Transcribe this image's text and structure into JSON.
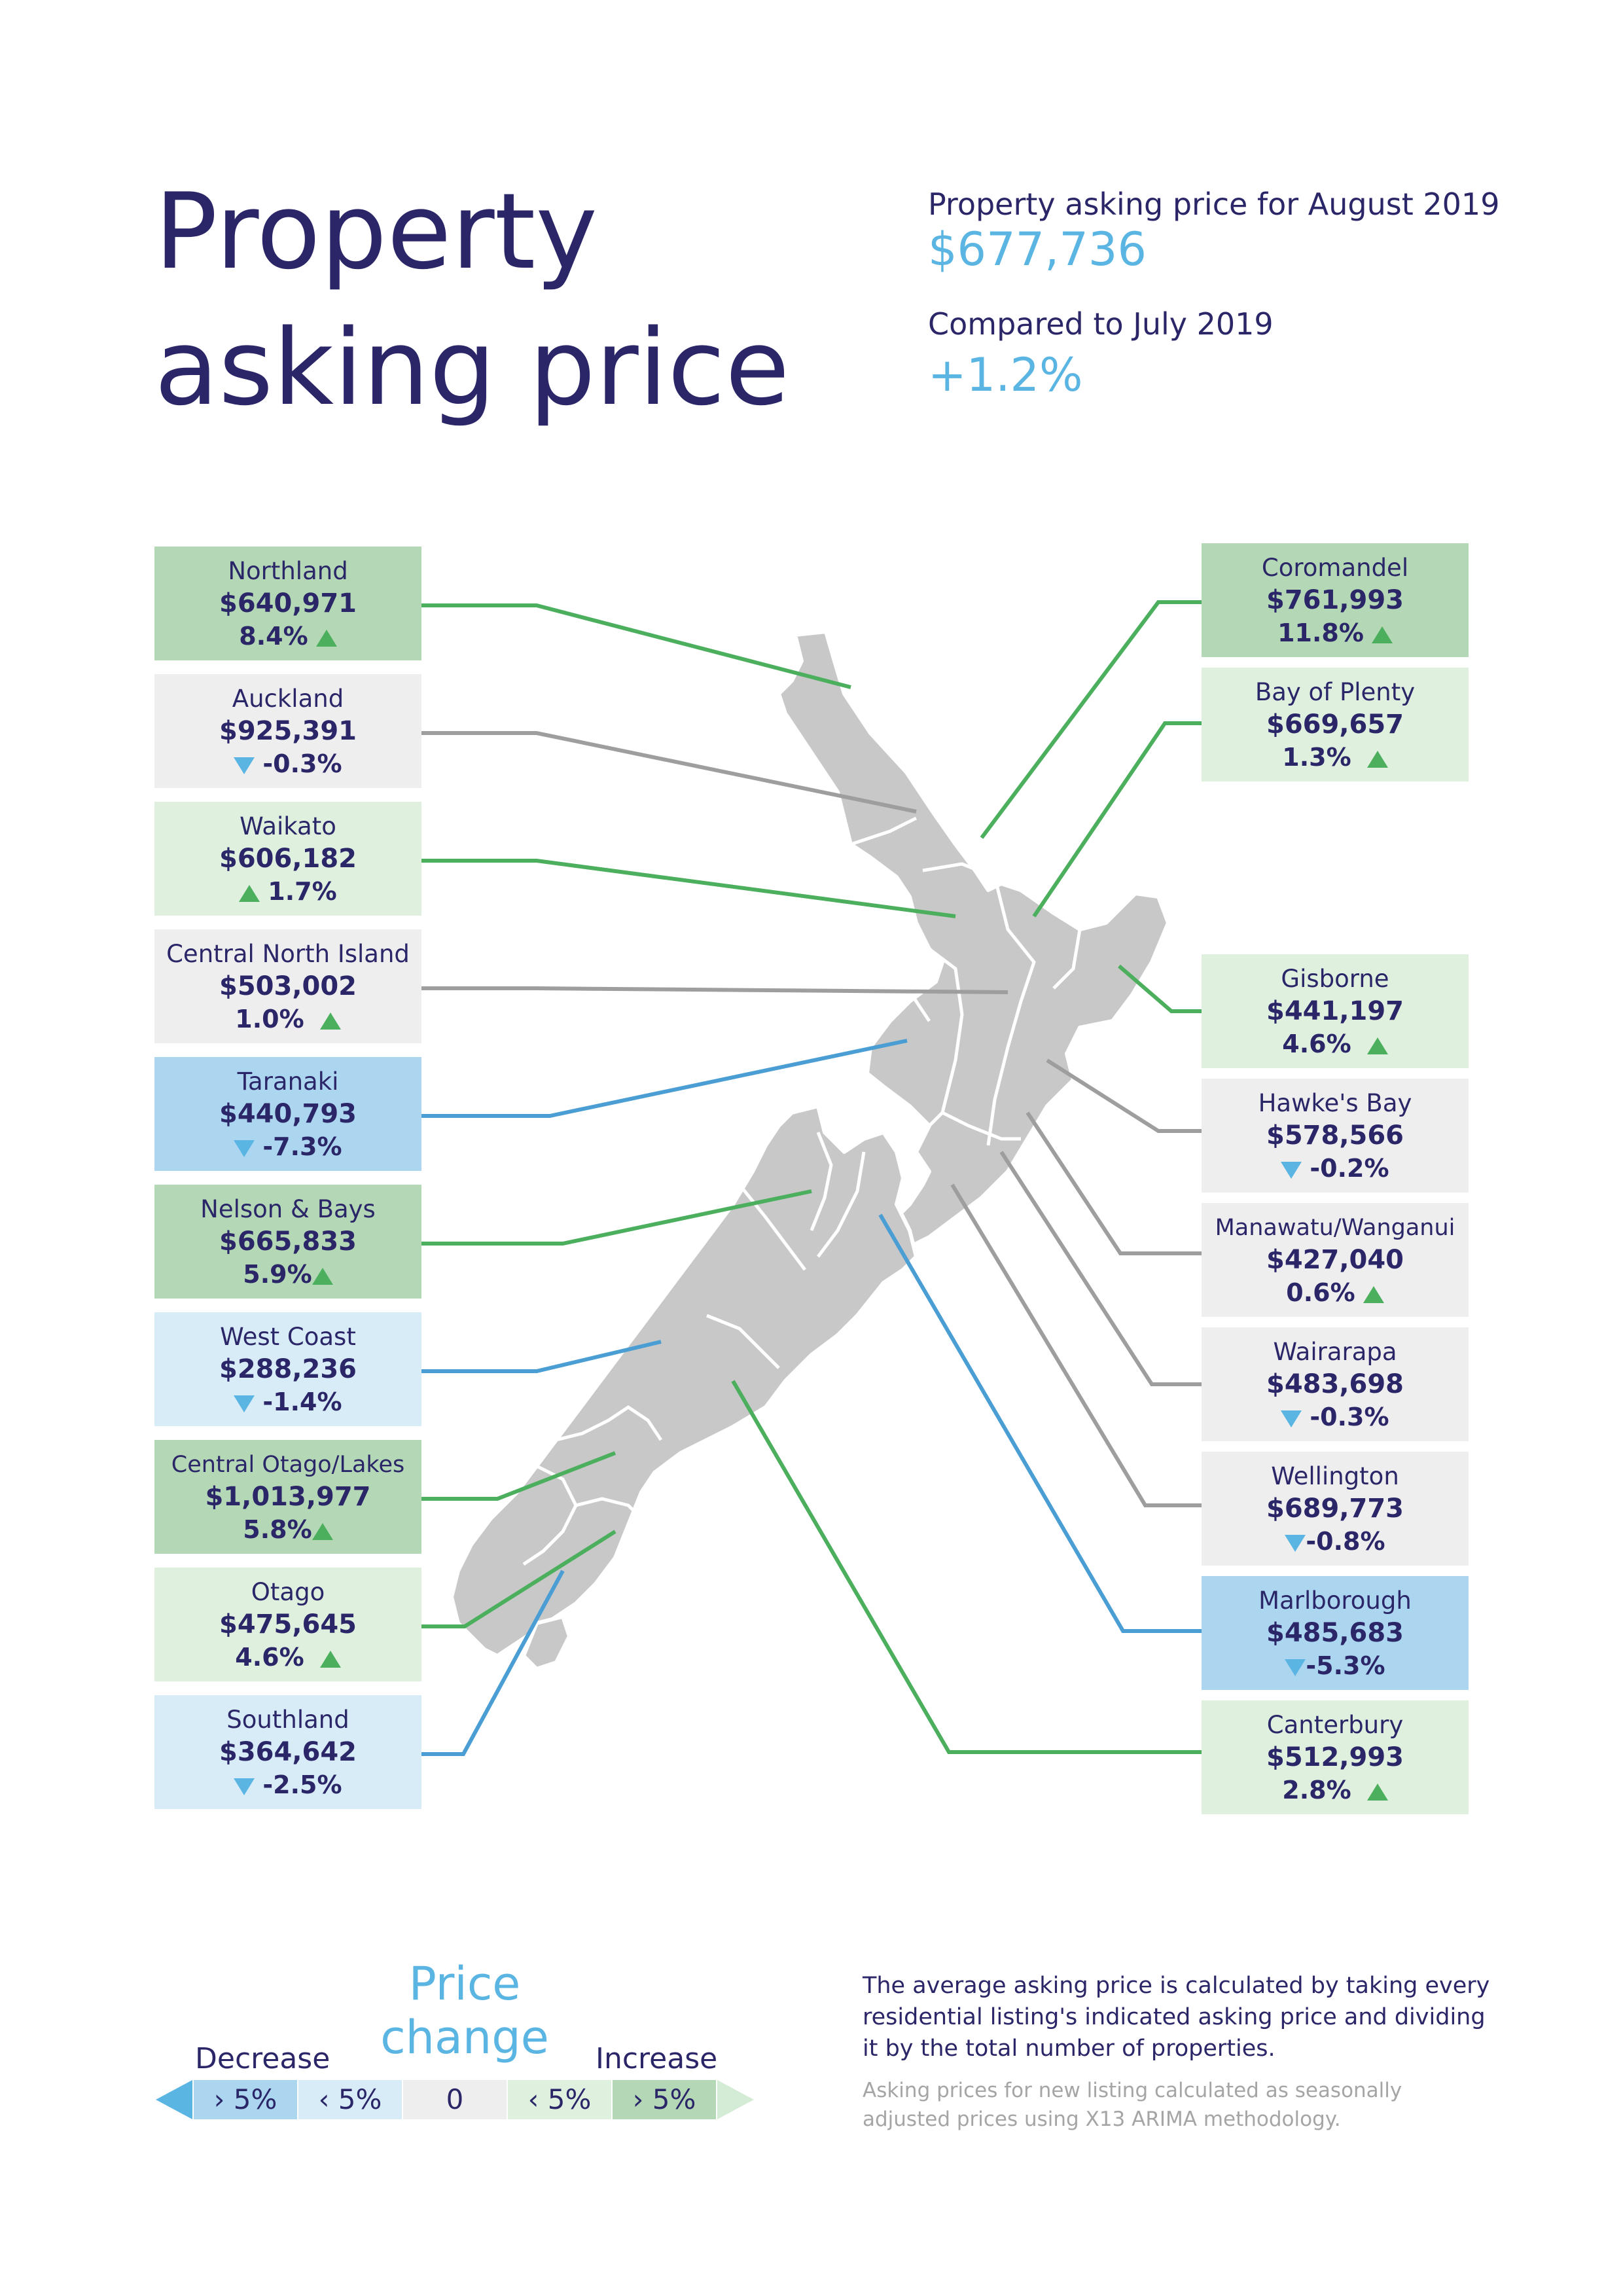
{
  "title": {
    "line1": "Property",
    "line2": "asking price"
  },
  "header": {
    "asking_label": "Property asking price for August 2019",
    "asking_value": "$677,736",
    "compare_label": "Compared to July 2019",
    "compare_value": "+1.2%"
  },
  "colors": {
    "navy": "#2a2668",
    "accent_blue": "#5bb5e3",
    "strong_increase": "#b4d8b6",
    "mild_increase": "#dff0df",
    "neutral": "#eeeeee",
    "mild_decrease": "#d8ecf8",
    "strong_decrease": "#acd6f0",
    "line_green": "#4caf5d",
    "line_grey": "#9e9e9e",
    "line_blue": "#4a9ed4",
    "map_fill": "#c8c8c8"
  },
  "regions_left": [
    {
      "name": "Northland",
      "price": "$640,971",
      "change": "8.4%",
      "direction": "up",
      "category": "strong_increase"
    },
    {
      "name": "Auckland",
      "price": "$925,391",
      "change": "-0.3%",
      "direction": "down",
      "category": "neutral"
    },
    {
      "name": "Waikato",
      "price": "$606,182",
      "change": "1.7%",
      "direction": "up",
      "category": "mild_increase"
    },
    {
      "name": "Central North Island",
      "price": "$503,002",
      "change": "1.0%",
      "direction": "up",
      "category": "neutral"
    },
    {
      "name": "Taranaki",
      "price": "$440,793",
      "change": "-7.3%",
      "direction": "down",
      "category": "strong_decrease"
    },
    {
      "name": "Nelson & Bays",
      "price": "$665,833",
      "change": "5.9%",
      "direction": "up",
      "category": "strong_increase"
    },
    {
      "name": "West Coast",
      "price": "$288,236",
      "change": "-1.4%",
      "direction": "down",
      "category": "mild_decrease"
    },
    {
      "name": "Central Otago/Lakes",
      "price": "$1,013,977",
      "change": "5.8%",
      "direction": "up",
      "category": "strong_increase"
    },
    {
      "name": "Otago",
      "price": "$475,645",
      "change": "4.6%",
      "direction": "up",
      "category": "mild_increase"
    },
    {
      "name": "Southland",
      "price": "$364,642",
      "change": "-2.5%",
      "direction": "down",
      "category": "mild_decrease"
    }
  ],
  "regions_right": [
    {
      "name": "Coromandel",
      "price": "$761,993",
      "change": "11.8%",
      "direction": "up",
      "category": "strong_increase"
    },
    {
      "name": "Bay of Plenty",
      "price": "$669,657",
      "change": "1.3%",
      "direction": "up",
      "category": "mild_increase"
    },
    {
      "name": "Gisborne",
      "price": "$441,197",
      "change": "4.6%",
      "direction": "up",
      "category": "mild_increase"
    },
    {
      "name": "Hawke's Bay",
      "price": "$578,566",
      "change": "-0.2%",
      "direction": "down",
      "category": "neutral"
    },
    {
      "name": "Manawatu/Wanganui",
      "price": "$427,040",
      "change": "0.6%",
      "direction": "up",
      "category": "neutral"
    },
    {
      "name": "Wairarapa",
      "price": "$483,698",
      "change": "-0.3%",
      "direction": "down",
      "category": "neutral"
    },
    {
      "name": "Wellington",
      "price": "$689,773",
      "change": "-0.8%",
      "direction": "down",
      "category": "neutral"
    },
    {
      "name": "Marlborough",
      "price": "$485,683",
      "change": "-5.3%",
      "direction": "down",
      "category": "strong_decrease"
    },
    {
      "name": "Canterbury",
      "price": "$512,993",
      "change": "2.8%",
      "direction": "up",
      "category": "mild_increase"
    }
  ],
  "legend": {
    "title": "Price change",
    "decrease_label": "Decrease",
    "increase_label": "Increase",
    "boxes": [
      "› 5%",
      "‹ 5%",
      "0",
      "‹ 5%",
      "› 5%"
    ]
  },
  "notes": {
    "main": "The average asking price is calculated by taking every residential listing's indicated asking price and dividing it by the total number of properties.",
    "secondary": "Asking prices for new listing calculated as seasonally adjusted prices using X13 ARIMA methodology."
  }
}
